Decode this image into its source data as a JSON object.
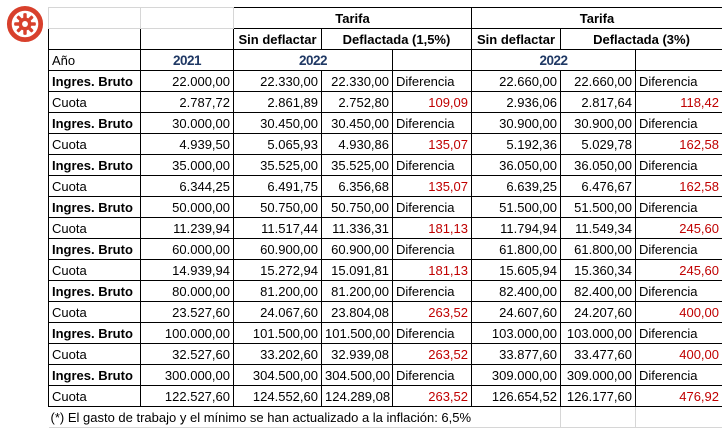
{
  "gear_button": {
    "icon": "gear-icon",
    "color": "#d8402c"
  },
  "table": {
    "top_header": {
      "tarifa_left": "Tarifa",
      "tarifa_right": "Tarifa"
    },
    "col_header": {
      "sin_deflactar_left": "Sin deflactar",
      "deflactada_left": "Deflactada (1,5%)",
      "sin_deflactar_right": "Sin deflactar",
      "deflactada_right": "Deflactada (3%)"
    },
    "year_row": {
      "label": "Año",
      "base_year": "2021",
      "year_left": "2022",
      "year_right": "2022"
    },
    "rows": [
      {
        "label": "Ingres. Bruto",
        "emphasis": true,
        "y2021": "22.000,00",
        "sd1": "22.330,00",
        "df1": "22.330,00",
        "dif1": "Diferencia",
        "sd2": "22.660,00",
        "df2": "22.660,00",
        "dif2": "Diferencia"
      },
      {
        "label": "Cuota",
        "emphasis": false,
        "y2021": "2.787,72",
        "sd1": "2.861,89",
        "df1": "2.752,80",
        "dif1": "109,09",
        "sd2": "2.936,06",
        "df2": "2.817,64",
        "dif2": "118,42"
      },
      {
        "label": "Ingres. Bruto",
        "emphasis": true,
        "y2021": "30.000,00",
        "sd1": "30.450,00",
        "df1": "30.450,00",
        "dif1": "Diferencia",
        "sd2": "30.900,00",
        "df2": "30.900,00",
        "dif2": "Diferencia"
      },
      {
        "label": "Cuota",
        "emphasis": false,
        "y2021": "4.939,50",
        "sd1": "5.065,93",
        "df1": "4.930,86",
        "dif1": "135,07",
        "sd2": "5.192,36",
        "df2": "5.029,78",
        "dif2": "162,58"
      },
      {
        "label": "Ingres. Bruto",
        "emphasis": true,
        "y2021": "35.000,00",
        "sd1": "35.525,00",
        "df1": "35.525,00",
        "dif1": "Diferencia",
        "sd2": "36.050,00",
        "df2": "36.050,00",
        "dif2": "Diferencia"
      },
      {
        "label": "Cuota",
        "emphasis": false,
        "y2021": "6.344,25",
        "sd1": "6.491,75",
        "df1": "6.356,68",
        "dif1": "135,07",
        "sd2": "6.639,25",
        "df2": "6.476,67",
        "dif2": "162,58"
      },
      {
        "label": "Ingres. Bruto",
        "emphasis": true,
        "y2021": "50.000,00",
        "sd1": "50.750,00",
        "df1": "50.750,00",
        "dif1": "Diferencia",
        "sd2": "51.500,00",
        "df2": "51.500,00",
        "dif2": "Diferencia"
      },
      {
        "label": "Cuota",
        "emphasis": false,
        "y2021": "11.239,94",
        "sd1": "11.517,44",
        "df1": "11.336,31",
        "dif1": "181,13",
        "sd2": "11.794,94",
        "df2": "11.549,34",
        "dif2": "245,60"
      },
      {
        "label": "Ingres. Bruto",
        "emphasis": true,
        "y2021": "60.000,00",
        "sd1": "60.900,00",
        "df1": "60.900,00",
        "dif1": "Diferencia",
        "sd2": "61.800,00",
        "df2": "61.800,00",
        "dif2": "Diferencia"
      },
      {
        "label": "Cuota",
        "emphasis": false,
        "y2021": "14.939,94",
        "sd1": "15.272,94",
        "df1": "15.091,81",
        "dif1": "181,13",
        "sd2": "15.605,94",
        "df2": "15.360,34",
        "dif2": "245,60"
      },
      {
        "label": "Ingres. Bruto",
        "emphasis": true,
        "y2021": "80.000,00",
        "sd1": "81.200,00",
        "df1": "81.200,00",
        "dif1": "Diferencia",
        "sd2": "82.400,00",
        "df2": "82.400,00",
        "dif2": "Diferencia"
      },
      {
        "label": "Cuota",
        "emphasis": false,
        "y2021": "23.527,60",
        "sd1": "24.067,60",
        "df1": "23.804,08",
        "dif1": "263,52",
        "sd2": "24.607,60",
        "df2": "24.207,60",
        "dif2": "400,00"
      },
      {
        "label": "Ingres. Bruto",
        "emphasis": true,
        "y2021": "100.000,00",
        "sd1": "101.500,00",
        "df1": "101.500,00",
        "dif1": "Diferencia",
        "sd2": "103.000,00",
        "df2": "103.000,00",
        "dif2": "Diferencia"
      },
      {
        "label": "Cuota",
        "emphasis": false,
        "y2021": "32.527,60",
        "sd1": "33.202,60",
        "df1": "32.939,08",
        "dif1": "263,52",
        "sd2": "33.877,60",
        "df2": "33.477,60",
        "dif2": "400,00"
      },
      {
        "label": "Ingres. Bruto",
        "emphasis": true,
        "y2021": "300.000,00",
        "sd1": "304.500,00",
        "df1": "304.500,00",
        "dif1": "Diferencia",
        "sd2": "309.000,00",
        "df2": "309.000,00",
        "dif2": "Diferencia"
      },
      {
        "label": "Cuota",
        "emphasis": false,
        "y2021": "122.527,60",
        "sd1": "124.552,60",
        "df1": "124.289,08",
        "dif1": "263,52",
        "sd2": "126.654,52",
        "df2": "126.177,60",
        "dif2": "476,92"
      }
    ],
    "footnote": "(*) El gasto de trabajo y el mínimo se han actualizado a la inflación: 6,5%"
  },
  "colors": {
    "year_text": "#1f3864",
    "diff_text": "#c00000",
    "grid": "#000000",
    "gridline_light": "#d6d6d6",
    "icon": "#d8402c"
  }
}
